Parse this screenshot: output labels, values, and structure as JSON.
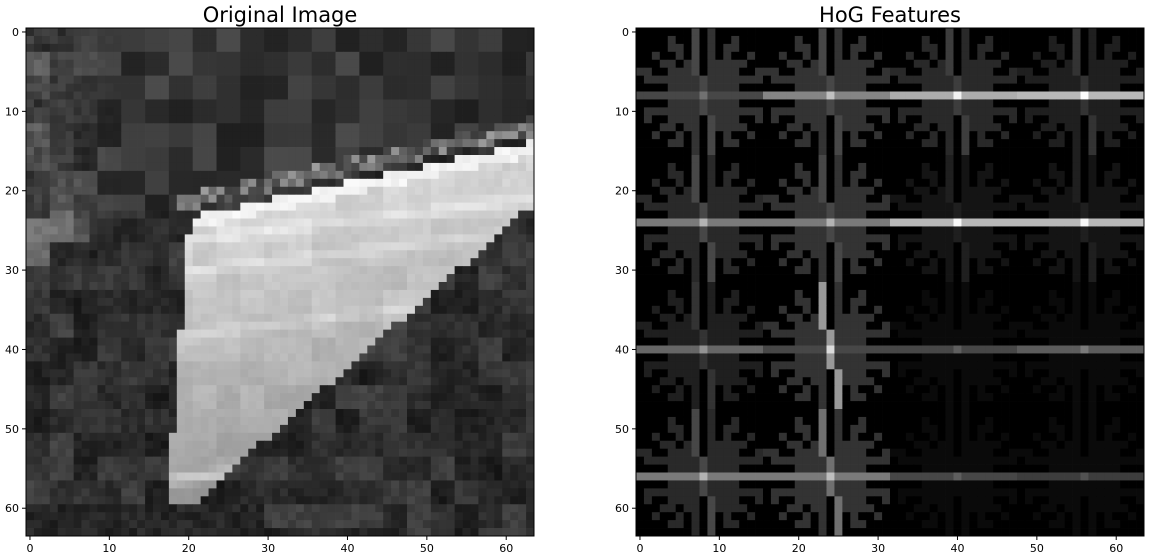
{
  "chart_data": [
    {
      "type": "heatmap",
      "title": "Original Image",
      "xlabel": "",
      "ylabel": "",
      "xlim": [
        -0.5,
        63.5
      ],
      "ylim": [
        63.5,
        -0.5
      ],
      "xticks": [
        0,
        10,
        20,
        30,
        40,
        50,
        60
      ],
      "yticks": [
        0,
        10,
        20,
        30,
        40,
        50,
        60
      ],
      "colormap": "gray",
      "image_size": [
        64,
        64
      ],
      "grid": false,
      "scene": {
        "dark_background_rows": [
          0,
          14
        ],
        "bright_surface": {
          "top_edge_rows": [
            14,
            24
          ],
          "left_edge_cols": [
            22,
            17
          ],
          "bottom_edge_rows": [
            20,
            57
          ],
          "value_range": [
            150,
            215
          ]
        },
        "highlight_streaks_rows": [
          19,
          25,
          29,
          37,
          55
        ],
        "dark_lower_left_cols": [
          0,
          18
        ]
      }
    },
    {
      "type": "heatmap",
      "title": "HoG Features",
      "xlabel": "",
      "ylabel": "",
      "xlim": [
        -0.5,
        63.5
      ],
      "ylim": [
        63.5,
        -0.5
      ],
      "xticks": [
        0,
        10,
        20,
        30,
        40,
        50,
        60
      ],
      "yticks": [
        0,
        10,
        20,
        30,
        40,
        50,
        60
      ],
      "colormap": "gray",
      "image_size": [
        64,
        64
      ],
      "grid": false,
      "cells": {
        "rows": 4,
        "cols": 4,
        "cell_size": 16,
        "orientations": 9,
        "horizontal_strength": [
          [
            0.35,
            0.65,
            0.85,
            0.9
          ],
          [
            0.6,
            0.6,
            0.9,
            0.9
          ],
          [
            0.5,
            0.35,
            0.35,
            0.45
          ],
          [
            0.6,
            0.6,
            0.35,
            0.3
          ]
        ],
        "vertical_strength": [
          [
            0.35,
            0.35,
            0.3,
            0.25
          ],
          [
            0.35,
            0.35,
            0.15,
            0.15
          ],
          [
            0.25,
            0.75,
            0.05,
            0.05
          ],
          [
            0.35,
            0.55,
            0.05,
            0.05
          ]
        ],
        "other_strength": [
          [
            0.25,
            0.25,
            0.2,
            0.15
          ],
          [
            0.2,
            0.25,
            0.1,
            0.1
          ],
          [
            0.15,
            0.25,
            0.05,
            0.05
          ],
          [
            0.2,
            0.25,
            0.05,
            0.05
          ]
        ]
      }
    }
  ]
}
